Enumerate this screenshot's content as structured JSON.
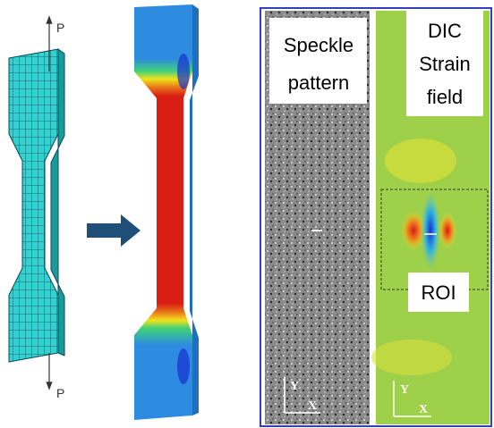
{
  "loads": {
    "top": "P",
    "bottom": "P"
  },
  "panels": [
    {
      "title_lines": [
        "Speckle",
        "pattern"
      ],
      "axis_y": "Y",
      "axis_x": "X"
    },
    {
      "title_lines": [
        "DIC",
        "Strain",
        "field"
      ],
      "roi": "ROI",
      "axis_y": "Y",
      "axis_x": "X"
    }
  ]
}
